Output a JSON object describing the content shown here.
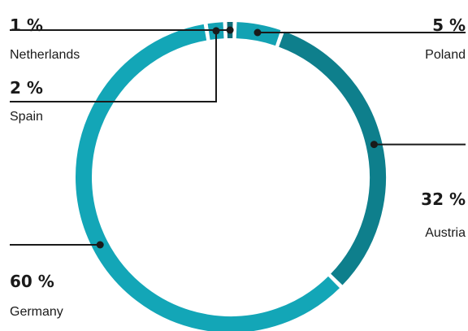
{
  "chart_data": {
    "type": "pie",
    "variant": "donut",
    "colors": {
      "Poland": "#13a2b3",
      "Austria": "#0e7f8c",
      "Germany": "#13a6b7",
      "Spain": "#13a2b3",
      "Netherlands": "#0c6c78"
    },
    "slices": [
      {
        "label": "Poland",
        "value": 5,
        "value_label": "5 %"
      },
      {
        "label": "Austria",
        "value": 32,
        "value_label": "32 %"
      },
      {
        "label": "Germany",
        "value": 60,
        "value_label": "60 %"
      },
      {
        "label": "Spain",
        "value": 2,
        "value_label": "2 %"
      },
      {
        "label": "Netherlands",
        "value": 1,
        "value_label": "1 %"
      }
    ]
  }
}
